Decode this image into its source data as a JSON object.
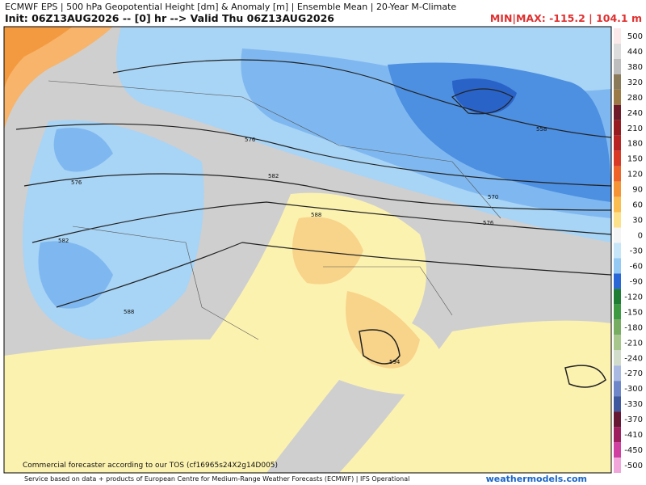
{
  "header": {
    "line1": "ECMWF EPS | 500 hPa Geopotential Height [dm] & Anomaly [m] | Ensemble Mean | 20-Year M-Climate",
    "line2": "Init: 06Z13AUG2026 -- [0] hr --> Valid Thu 06Z13AUG2026",
    "minmax": "MIN|MAX: -115.2 | 104.1 m"
  },
  "legend": {
    "levels": [
      {
        "value": 500,
        "color": "#fbe9e9"
      },
      {
        "value": 440,
        "color": "#dcdcdc"
      },
      {
        "value": 380,
        "color": "#bdbdbd"
      },
      {
        "value": 320,
        "color": "#8a7a5a"
      },
      {
        "value": 280,
        "color": "#9c7a48"
      },
      {
        "value": 240,
        "color": "#6e1a28"
      },
      {
        "value": 210,
        "color": "#961c22"
      },
      {
        "value": 180,
        "color": "#b82424"
      },
      {
        "value": 150,
        "color": "#d83a26"
      },
      {
        "value": 120,
        "color": "#ee6428"
      },
      {
        "value": 90,
        "color": "#f59436"
      },
      {
        "value": 60,
        "color": "#f9bd52"
      },
      {
        "value": 30,
        "color": "#fde08a"
      },
      {
        "value": 0,
        "color": "#f4f4f4"
      },
      {
        "value": -30,
        "color": "#c6e5f8"
      },
      {
        "value": -60,
        "color": "#93c9f3"
      },
      {
        "value": -90,
        "color": "#2a66d6"
      },
      {
        "value": -120,
        "color": "#1f7d33"
      },
      {
        "value": -150,
        "color": "#3d9a42"
      },
      {
        "value": -180,
        "color": "#76ad63"
      },
      {
        "value": -210,
        "color": "#a6c68e"
      },
      {
        "value": -240,
        "color": "#d2dccb"
      },
      {
        "value": -270,
        "color": "#a9b9e2"
      },
      {
        "value": -300,
        "color": "#6f87c8"
      },
      {
        "value": -330,
        "color": "#3f589e"
      },
      {
        "value": -370,
        "color": "#651734"
      },
      {
        "value": -410,
        "color": "#9d1f5e"
      },
      {
        "value": -450,
        "color": "#cf40a0"
      },
      {
        "value": -500,
        "color": "#f0a6da"
      }
    ]
  },
  "contour_labels": [
    "576",
    "582",
    "588",
    "576",
    "582",
    "588",
    "594",
    "570",
    "576",
    "558"
  ],
  "watermark": "Commercial forecaster according to our TOS (cf16965s24X2g14D005)",
  "footer": "Service based on data + products of European Centre for Medium-Range Weather Forecasts (ECMWF) | IFS Operational",
  "brand": "weathermodels.com"
}
